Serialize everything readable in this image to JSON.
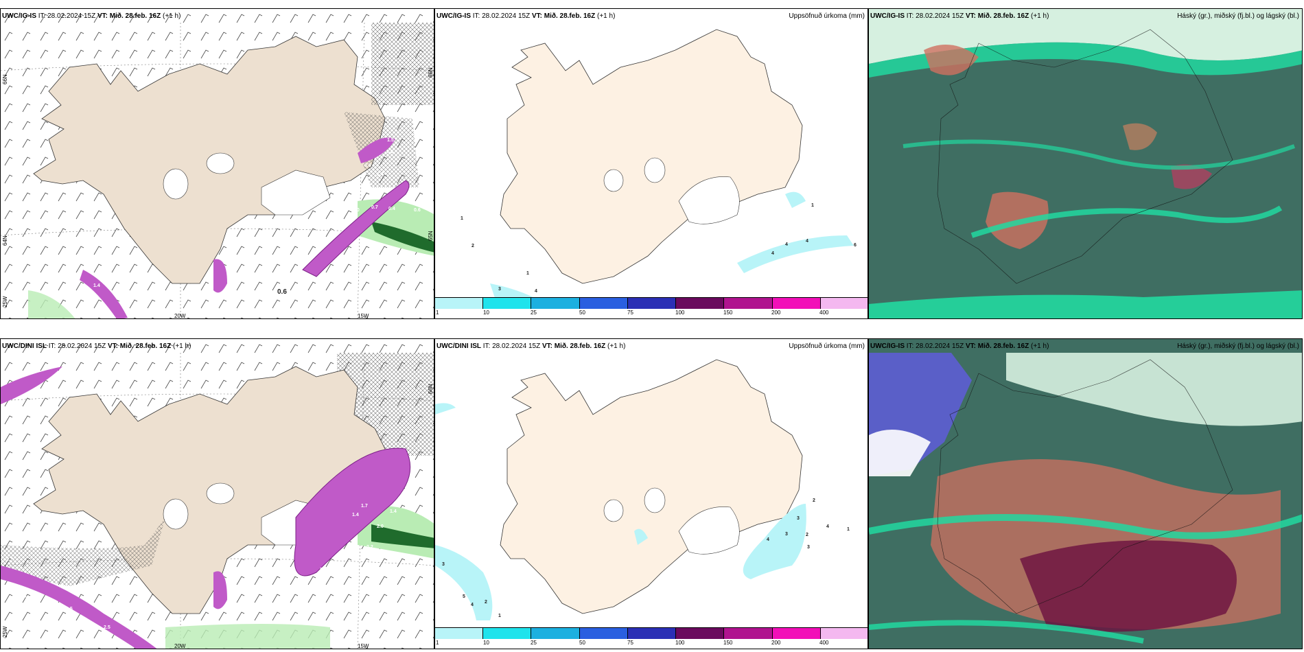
{
  "rows": [
    {
      "panels": [
        {
          "model": "UWC/IG-IS",
          "it": "IT: 28.02.2024 15Z",
          "vt_label": "VT:",
          "vt": "Mið. 28.feb. 16Z",
          "lead": "(+1 h)",
          "title_right": ""
        },
        {
          "model": "UWC/IG-IS",
          "it": "IT: 28.02.2024 15Z",
          "vt_label": "VT:",
          "vt": "Mið. 28.feb. 16Z",
          "lead": "(+1 h)",
          "title_right": "Uppsöfnuð úrkoma (mm)"
        },
        {
          "model": "UWC/IG-IS",
          "it": "IT: 28.02.2024 15Z",
          "vt_label": "VT:",
          "vt": "Mið. 28.feb. 16Z",
          "lead": "(+1 h)",
          "title_right": "Háský (gr.), miðský (fj.bl.) og lágský (bl.)"
        }
      ]
    },
    {
      "panels": [
        {
          "model": "UWC/DINI ISL",
          "it": "IT: 28.02.2024 15Z",
          "vt_label": "VT:",
          "vt": "Mið. 28.feb. 16Z",
          "lead": "(+1 h)",
          "title_right": ""
        },
        {
          "model": "UWC/DINI ISL",
          "it": "IT: 28.02.2024 15Z",
          "vt_label": "VT:",
          "vt": "Mið. 28.feb. 16Z",
          "lead": "(+1 h)",
          "title_right": "Uppsöfnuð úrkoma (mm)"
        },
        {
          "model": "UWC/IG-IS",
          "it": "IT: 28.02.2024 15Z",
          "vt_label": "VT:",
          "vt": "Mið. 28.feb. 16Z",
          "lead": "(+1 h)",
          "title_right": "Háský (gr.), miðský (fj.bl.) og lágský (bl.)"
        }
      ]
    }
  ],
  "axis_labels": {
    "lon_20": "20W",
    "lon_15": "15W",
    "lat_65": "65N",
    "lat_66": "66N",
    "lat_64": "64N",
    "lat_63": "63N",
    "lon_25": "25W"
  },
  "colorbar": {
    "ticks": [
      "1",
      "10",
      "25",
      "50",
      "75",
      "100",
      "150",
      "200",
      "400"
    ],
    "colors": [
      "#b8f4f8",
      "#1fe3ec",
      "#1cb0e0",
      "#2a5fe0",
      "#2b2fb5",
      "#6a0a5e",
      "#b0138f",
      "#f20fb8",
      "#f4b8f0"
    ]
  },
  "precip_values_top": [
    "1",
    "2",
    "3",
    "1",
    "4",
    "1",
    "4",
    "4",
    "4",
    "6"
  ],
  "precip_values_bottom": [
    "3",
    "5",
    "4",
    "2",
    "1",
    "2",
    "3",
    "3",
    "2",
    "4",
    "3",
    "1",
    "4"
  ],
  "wind_values_top": [
    "1.5",
    "1.3",
    "0.9",
    "1.4",
    "0.5",
    "0.7",
    "0.4",
    "0.6",
    "1.0",
    "1.3",
    "0.6",
    "1.4"
  ],
  "wind_values_bottom": [
    "2.2",
    "2.3",
    "1.4",
    "1.7",
    "2.0",
    "1.4",
    "3.4",
    "0.5",
    "0.5",
    "2.5",
    "1.1",
    "2.7"
  ],
  "colors": {
    "land": "#ede0d0",
    "land_precip": "#fdf1e3",
    "purple": "#c05ac8",
    "green": "#b9ecb4",
    "cloud_dark": "#3f6e62",
    "cloud_teal": "#22d8a0"
  }
}
